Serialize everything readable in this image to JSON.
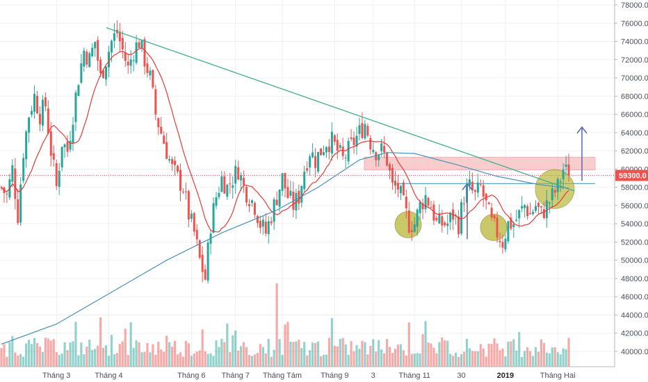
{
  "colors": {
    "up": "#26a69a",
    "down": "#ef5350",
    "ma_short": "#e53935",
    "ma_long": "#4a90b8",
    "trendline": "#3fae8c",
    "resistance_zone": "#f4a6a6",
    "support_line": "#5aa8c8",
    "circle_fill": "#b5b22a",
    "arrow": "#5b6fb5",
    "price_tag": "#ef5350"
  },
  "chart_data": {
    "type": "candlestick",
    "title": "",
    "price_axis": {
      "min": 40000,
      "max": 78000,
      "step": 2000,
      "ticks": [
        "78000.0",
        "76000.0",
        "74000.0",
        "72000.0",
        "70000.0",
        "68000.0",
        "66000.0",
        "64000.0",
        "62000.0",
        "60000.0",
        "58000.0",
        "56000.0",
        "54000.0",
        "52000.0",
        "50000.0",
        "48000.0",
        "46000.0",
        "44000.0",
        "42000.0",
        "40000.0"
      ]
    },
    "time_axis": {
      "ticks": [
        {
          "label": "Tháng 3",
          "bold": false
        },
        {
          "label": "Tháng 4",
          "bold": false
        },
        {
          "label": "Tháng 6",
          "bold": false
        },
        {
          "label": "Tháng 7",
          "bold": false
        },
        {
          "label": "Tháng Tám",
          "bold": false
        },
        {
          "label": "Tháng 9",
          "bold": false
        },
        {
          "label": "3",
          "bold": false
        },
        {
          "label": "Tháng 11",
          "bold": false
        },
        {
          "label": "30",
          "bold": false
        },
        {
          "label": "2019",
          "bold": true
        },
        {
          "label": "Tháng Hai",
          "bold": false
        }
      ]
    },
    "last_price": {
      "value": 59300,
      "label": "59300.0"
    },
    "close_path": [
      [
        0,
        58000
      ],
      [
        2,
        57000
      ],
      [
        4,
        60000
      ],
      [
        6,
        55000
      ],
      [
        8,
        62000
      ],
      [
        10,
        66000
      ],
      [
        12,
        68000
      ],
      [
        14,
        66000
      ],
      [
        16,
        67000
      ],
      [
        18,
        62000
      ],
      [
        20,
        58000
      ],
      [
        22,
        63000
      ],
      [
        24,
        62000
      ],
      [
        26,
        66000
      ],
      [
        28,
        70000
      ],
      [
        30,
        73000
      ],
      [
        32,
        72000
      ],
      [
        34,
        74000
      ],
      [
        36,
        70000
      ],
      [
        38,
        72000
      ],
      [
        40,
        74000
      ],
      [
        42,
        75000
      ],
      [
        44,
        73000
      ],
      [
        46,
        71000
      ],
      [
        48,
        73000
      ],
      [
        50,
        74000
      ],
      [
        52,
        72000
      ],
      [
        54,
        70000
      ],
      [
        56,
        66000
      ],
      [
        58,
        64000
      ],
      [
        60,
        62000
      ],
      [
        62,
        60000
      ],
      [
        64,
        59000
      ],
      [
        66,
        58000
      ],
      [
        68,
        55000
      ],
      [
        70,
        53000
      ],
      [
        72,
        50000
      ],
      [
        74,
        48000
      ],
      [
        76,
        54000
      ],
      [
        78,
        57000
      ],
      [
        80,
        59000
      ],
      [
        82,
        58000
      ],
      [
        84,
        59000
      ],
      [
        86,
        60000
      ],
      [
        88,
        58000
      ],
      [
        90,
        57000
      ],
      [
        92,
        56000
      ],
      [
        94,
        54000
      ],
      [
        96,
        53000
      ],
      [
        98,
        55000
      ],
      [
        100,
        57000
      ],
      [
        102,
        59000
      ],
      [
        104,
        57000
      ],
      [
        106,
        56000
      ],
      [
        108,
        57000
      ],
      [
        110,
        60000
      ],
      [
        112,
        62000
      ],
      [
        114,
        61000
      ],
      [
        116,
        62000
      ],
      [
        118,
        63000
      ],
      [
        120,
        63000
      ],
      [
        122,
        62000
      ],
      [
        124,
        61000
      ],
      [
        126,
        62000
      ],
      [
        128,
        63000
      ],
      [
        130,
        64000
      ],
      [
        132,
        65000
      ],
      [
        134,
        63000
      ],
      [
        136,
        62000
      ],
      [
        138,
        62000
      ],
      [
        140,
        61000
      ],
      [
        142,
        58000
      ],
      [
        144,
        58000
      ],
      [
        146,
        56000
      ],
      [
        148,
        54000
      ],
      [
        150,
        54000
      ],
      [
        152,
        56000
      ],
      [
        154,
        57000
      ],
      [
        156,
        56000
      ],
      [
        158,
        54000
      ],
      [
        160,
        54000
      ],
      [
        162,
        54000
      ],
      [
        164,
        55000
      ],
      [
        166,
        54000
      ],
      [
        168,
        57000
      ],
      [
        170,
        58000
      ],
      [
        172,
        57000
      ],
      [
        174,
        58000
      ],
      [
        176,
        56000
      ],
      [
        178,
        54000
      ],
      [
        180,
        53000
      ],
      [
        182,
        52000
      ],
      [
        184,
        54000
      ],
      [
        186,
        54000
      ],
      [
        188,
        55000
      ],
      [
        190,
        56000
      ],
      [
        192,
        55000
      ],
      [
        194,
        56000
      ],
      [
        196,
        55000
      ],
      [
        198,
        56000
      ],
      [
        200,
        57000
      ],
      [
        202,
        58000
      ],
      [
        204,
        60000
      ],
      [
        206,
        59300
      ]
    ],
    "series": [],
    "legend": "none",
    "grid": true
  }
}
